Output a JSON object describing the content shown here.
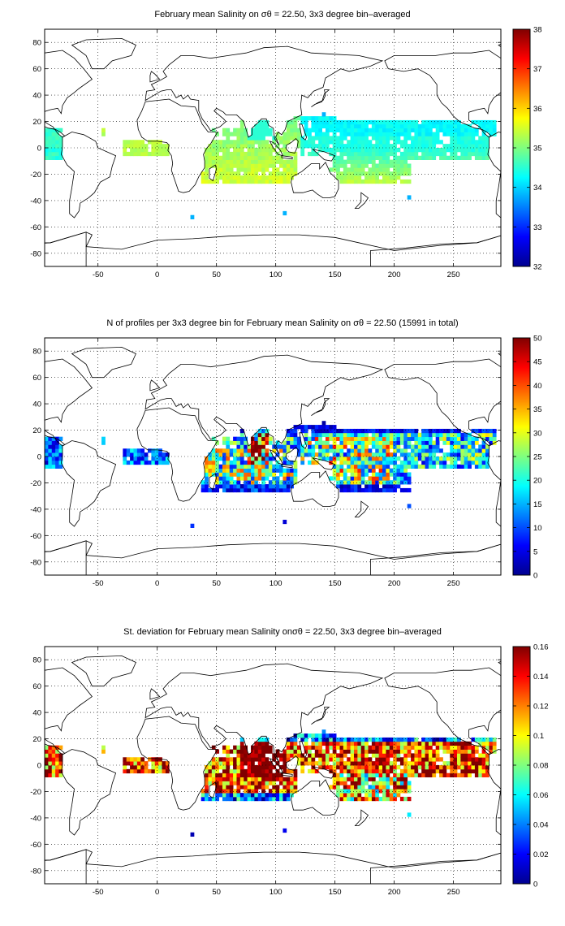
{
  "figure": {
    "panels": [
      {
        "id": "mean",
        "title": "February mean Salinity on σθ = 22.50, 3x3 degree bin–averaged",
        "xticks": [
          "-50",
          "0",
          "50",
          "100",
          "150",
          "200",
          "250"
        ],
        "yticks": [
          "80",
          "60",
          "40",
          "20",
          "0",
          "-20",
          "-40",
          "-60",
          "-80"
        ],
        "colorbar_ticks": [
          "38",
          "37",
          "36",
          "35",
          "34",
          "33",
          "32"
        ],
        "colorbar_range": [
          32,
          38
        ],
        "colormap": "jet"
      },
      {
        "id": "count",
        "title": "N of profiles per 3x3 degree bin for February mean Salinity on σθ = 22.50 (15991 in total)",
        "xticks": [
          "-50",
          "0",
          "50",
          "100",
          "150",
          "200",
          "250"
        ],
        "yticks": [
          "80",
          "60",
          "40",
          "20",
          "0",
          "-20",
          "-40",
          "-60",
          "-80"
        ],
        "colorbar_ticks": [
          "50",
          "45",
          "40",
          "35",
          "30",
          "25",
          "20",
          "15",
          "10",
          "5",
          "0"
        ],
        "colorbar_range": [
          0,
          50
        ],
        "colormap": "jet"
      },
      {
        "id": "std",
        "title": "St. deviation for February mean Salinity onσθ = 22.50, 3x3 degree bin–averaged",
        "xticks": [
          "-50",
          "0",
          "50",
          "100",
          "150",
          "200",
          "250"
        ],
        "yticks": [
          "80",
          "60",
          "40",
          "20",
          "0",
          "-20",
          "-40",
          "-60",
          "-80"
        ],
        "colorbar_ticks": [
          "0.16",
          "0.14",
          "0.12",
          "0.1",
          "0.08",
          "0.06",
          "0.04",
          "0.02",
          "0"
        ],
        "colorbar_range": [
          0,
          0.16
        ],
        "colormap": "jet"
      }
    ],
    "axes": {
      "x_range": [
        -95,
        290
      ],
      "y_range": [
        -90,
        90
      ],
      "grid": "dotted"
    }
  }
}
